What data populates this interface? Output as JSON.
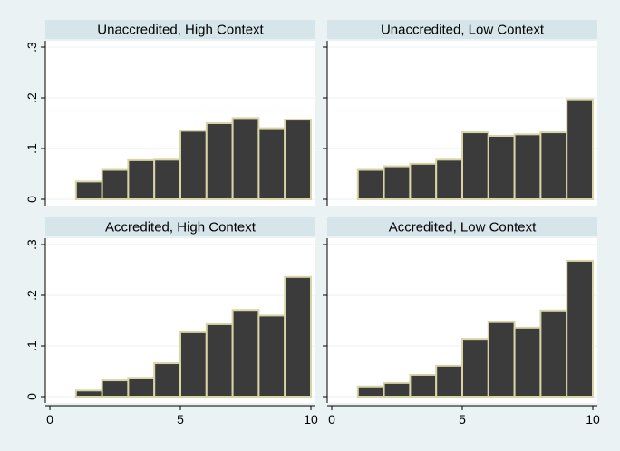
{
  "chart_data": {
    "type": "bar",
    "subtype": "histogram-facets",
    "colors": {
      "bar_fill": "#3b3b3b",
      "bar_edge": "#d8d4a6",
      "background": "#eaf2f3",
      "strip": "#d5e5ea"
    },
    "xlim": [
      0,
      10
    ],
    "ylim": [
      0,
      0.3
    ],
    "x_ticks": [
      "0",
      "5",
      "10"
    ],
    "y_ticks": [
      "0",
      ".1",
      ".2",
      ".3"
    ],
    "x_tick_values": [
      0,
      5,
      10
    ],
    "y_tick_values": [
      0,
      0.1,
      0.2,
      0.3
    ],
    "bins": [
      1,
      2,
      3,
      4,
      5,
      6,
      7,
      8,
      9,
      10
    ],
    "grid": true,
    "panels": [
      {
        "title": "Unaccredited, High Context",
        "values": [
          0.035,
          0.058,
          0.077,
          0.078,
          0.135,
          0.15,
          0.16,
          0.14,
          0.157
        ]
      },
      {
        "title": "Unaccredited, Low Context",
        "values": [
          0.058,
          0.065,
          0.07,
          0.078,
          0.132,
          0.125,
          0.128,
          0.132,
          0.197
        ]
      },
      {
        "title": "Accredited, High Context",
        "values": [
          0.012,
          0.032,
          0.037,
          0.066,
          0.127,
          0.143,
          0.171,
          0.16,
          0.236
        ]
      },
      {
        "title": "Accredited, Low Context",
        "values": [
          0.02,
          0.027,
          0.043,
          0.061,
          0.114,
          0.147,
          0.136,
          0.17,
          0.268
        ]
      }
    ]
  }
}
